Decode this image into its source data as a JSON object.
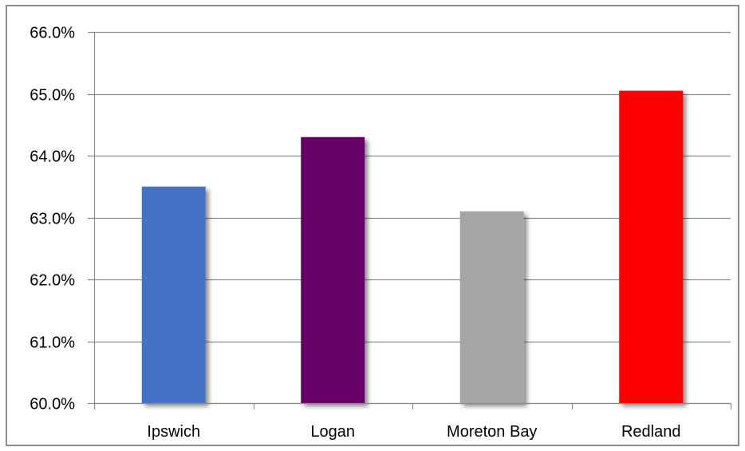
{
  "chart_data": {
    "type": "bar",
    "categories": [
      "Ipswich",
      "Logan",
      "Moreton Bay",
      "Redland"
    ],
    "values": [
      63.5,
      64.3,
      63.1,
      65.05
    ],
    "value_format": "percent",
    "ylim": [
      60,
      66
    ],
    "yticks": [
      60,
      61,
      62,
      63,
      64,
      65,
      66
    ],
    "ytick_labels": [
      "60.0%",
      "61.0%",
      "62.0%",
      "63.0%",
      "64.0%",
      "65.0%",
      "66.0%"
    ],
    "colors": [
      "#4472c4",
      "#660066",
      "#a5a5a5",
      "#ff0000"
    ],
    "grid": true,
    "legend": "none"
  }
}
